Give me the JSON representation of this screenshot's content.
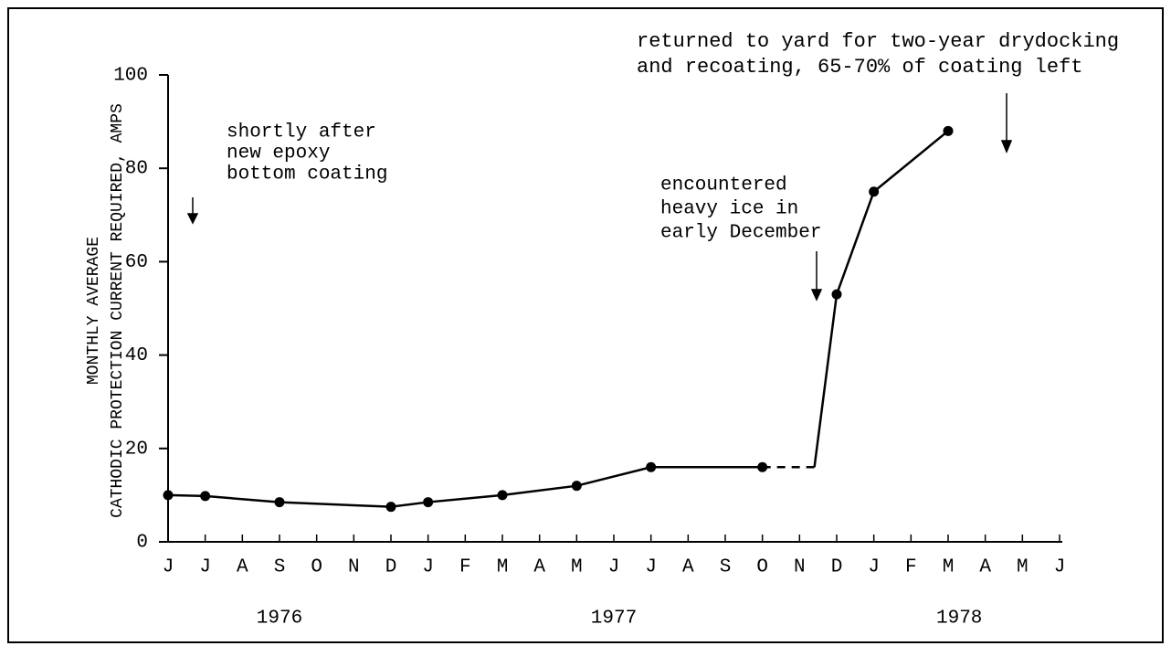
{
  "chart_data": {
    "type": "line",
    "y_label_lines": [
      "MONTHLY AVERAGE",
      "CATHODIC PROTECTION CURRENT REQUIRED, AMPS"
    ],
    "ylim": [
      0,
      100
    ],
    "yticks": [
      0,
      20,
      40,
      60,
      80,
      100
    ],
    "xlim": [
      0,
      24
    ],
    "xticks": [
      {
        "value": 0,
        "label": "J"
      },
      {
        "value": 1,
        "label": "J"
      },
      {
        "value": 2,
        "label": "A"
      },
      {
        "value": 3,
        "label": "S"
      },
      {
        "value": 4,
        "label": "O"
      },
      {
        "value": 5,
        "label": "N"
      },
      {
        "value": 6,
        "label": "D"
      },
      {
        "value": 7,
        "label": "J"
      },
      {
        "value": 8,
        "label": "F"
      },
      {
        "value": 9,
        "label": "M"
      },
      {
        "value": 10,
        "label": "A"
      },
      {
        "value": 11,
        "label": "M"
      },
      {
        "value": 12,
        "label": "J"
      },
      {
        "value": 13,
        "label": "J"
      },
      {
        "value": 14,
        "label": "A"
      },
      {
        "value": 15,
        "label": "S"
      },
      {
        "value": 16,
        "label": "O"
      },
      {
        "value": 17,
        "label": "N"
      },
      {
        "value": 18,
        "label": "D"
      },
      {
        "value": 19,
        "label": "J"
      },
      {
        "value": 20,
        "label": "F"
      },
      {
        "value": 21,
        "label": "M"
      },
      {
        "value": 22,
        "label": "A"
      },
      {
        "value": 23,
        "label": "M"
      },
      {
        "value": 24,
        "label": "J"
      }
    ],
    "years": [
      {
        "value": 3,
        "label": "1976"
      },
      {
        "value": 12,
        "label": "1977"
      },
      {
        "value": 21.3,
        "label": "1978"
      }
    ],
    "color": "#000000",
    "series": [
      {
        "x": [
          0,
          1,
          3,
          6,
          7,
          9,
          11,
          13,
          16
        ],
        "values": [
          10,
          9.8,
          8.5,
          7.5,
          8.5,
          10,
          12,
          16,
          16
        ],
        "dash": false,
        "markers": true
      },
      {
        "x": [
          16,
          17.4
        ],
        "values": [
          16,
          16
        ],
        "dash": true,
        "markers": false
      },
      {
        "x": [
          17.4,
          18
        ],
        "values": [
          16,
          53
        ],
        "dash": false,
        "markers": false
      },
      {
        "x": [
          18,
          19,
          21
        ],
        "values": [
          53,
          75,
          88
        ],
        "dash": false,
        "markers": true
      }
    ],
    "annotations": [
      {
        "lines": [
          "shortly after",
          "new epoxy",
          "bottom coating"
        ]
      },
      {
        "lines": [
          "encountered",
          "heavy ice in",
          "early December"
        ]
      },
      {
        "lines": [
          "returned to yard for two-year drydocking",
          "and recoating, 65-70% of coating left"
        ]
      }
    ]
  }
}
